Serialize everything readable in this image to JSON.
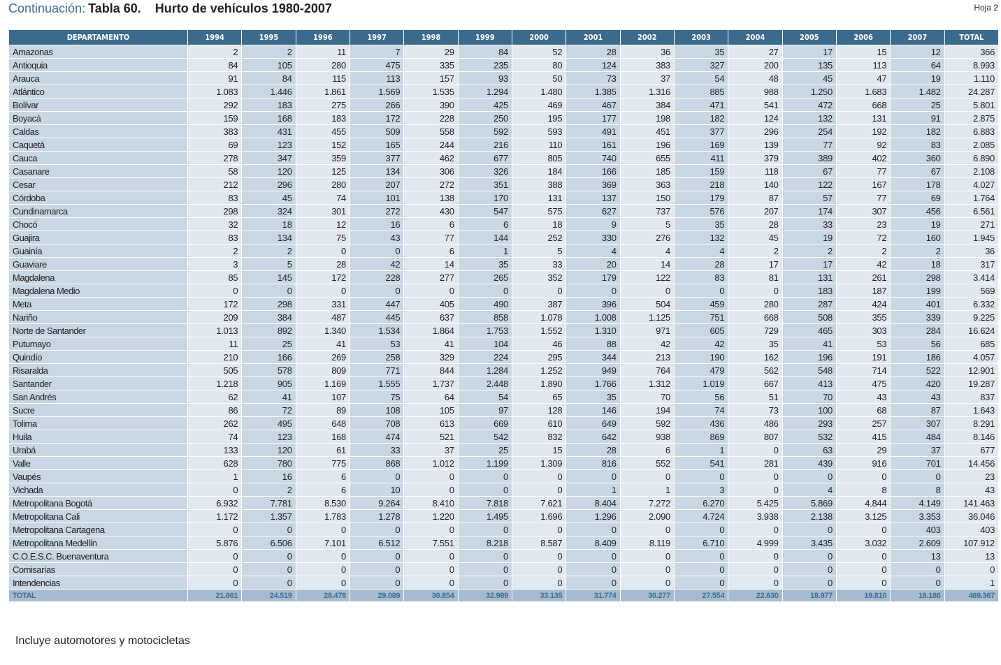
{
  "header": {
    "continuation": "Continuación:",
    "table_number": "Tabla 60.",
    "table_title": "Hurto de vehículos 1980-2007",
    "sheet": "Hoja 2"
  },
  "table": {
    "columns": [
      "DEPARTAMENTO",
      "1994",
      "1995",
      "1996",
      "1997",
      "1998",
      "1999",
      "2000",
      "2001",
      "2002",
      "2003",
      "2004",
      "2005",
      "2006",
      "2007",
      "TOTAL"
    ],
    "rows": [
      [
        "Amazonas",
        "2",
        "2",
        "11",
        "7",
        "29",
        "84",
        "52",
        "28",
        "36",
        "35",
        "27",
        "17",
        "15",
        "12",
        "366"
      ],
      [
        "Antioquia",
        "84",
        "105",
        "280",
        "475",
        "335",
        "235",
        "80",
        "124",
        "383",
        "327",
        "200",
        "135",
        "113",
        "64",
        "8.993"
      ],
      [
        "Arauca",
        "91",
        "84",
        "115",
        "113",
        "157",
        "93",
        "50",
        "73",
        "37",
        "54",
        "48",
        "45",
        "47",
        "19",
        "1.110"
      ],
      [
        "Atlántico",
        "1.083",
        "1.446",
        "1.861",
        "1.569",
        "1.535",
        "1.294",
        "1.480",
        "1.385",
        "1.316",
        "885",
        "988",
        "1.250",
        "1.683",
        "1.482",
        "24.287"
      ],
      [
        "Bolívar",
        "292",
        "183",
        "275",
        "266",
        "390",
        "425",
        "469",
        "467",
        "384",
        "471",
        "541",
        "472",
        "668",
        "25",
        "5.801"
      ],
      [
        "Boyacá",
        "159",
        "168",
        "183",
        "172",
        "228",
        "250",
        "195",
        "177",
        "198",
        "182",
        "124",
        "132",
        "131",
        "91",
        "2.875"
      ],
      [
        "Caldas",
        "383",
        "431",
        "455",
        "509",
        "558",
        "592",
        "593",
        "491",
        "451",
        "377",
        "296",
        "254",
        "192",
        "182",
        "6.883"
      ],
      [
        "Caquetá",
        "69",
        "123",
        "152",
        "165",
        "244",
        "216",
        "110",
        "161",
        "196",
        "169",
        "139",
        "77",
        "92",
        "83",
        "2.085"
      ],
      [
        "Cauca",
        "278",
        "347",
        "359",
        "377",
        "462",
        "677",
        "805",
        "740",
        "655",
        "411",
        "379",
        "389",
        "402",
        "360",
        "6.890"
      ],
      [
        "Casanare",
        "58",
        "120",
        "125",
        "134",
        "306",
        "326",
        "184",
        "166",
        "185",
        "159",
        "118",
        "67",
        "77",
        "67",
        "2.108"
      ],
      [
        "Cesar",
        "212",
        "296",
        "280",
        "207",
        "272",
        "351",
        "388",
        "369",
        "363",
        "218",
        "140",
        "122",
        "167",
        "178",
        "4.027"
      ],
      [
        "Córdoba",
        "83",
        "45",
        "74",
        "101",
        "138",
        "170",
        "131",
        "137",
        "150",
        "179",
        "87",
        "57",
        "77",
        "69",
        "1.764"
      ],
      [
        "Cundinamarca",
        "298",
        "324",
        "301",
        "272",
        "430",
        "547",
        "575",
        "627",
        "737",
        "576",
        "207",
        "174",
        "307",
        "456",
        "6.561"
      ],
      [
        "Chocó",
        "32",
        "18",
        "12",
        "16",
        "6",
        "6",
        "18",
        "9",
        "5",
        "35",
        "28",
        "33",
        "23",
        "19",
        "271"
      ],
      [
        "Guajira",
        "83",
        "134",
        "75",
        "43",
        "77",
        "144",
        "252",
        "330",
        "276",
        "132",
        "45",
        "19",
        "72",
        "160",
        "1.945"
      ],
      [
        "Guainía",
        "2",
        "2",
        "0",
        "0",
        "6",
        "1",
        "5",
        "4",
        "4",
        "4",
        "2",
        "2",
        "2",
        "2",
        "36"
      ],
      [
        "Guaviare",
        "3",
        "5",
        "28",
        "42",
        "14",
        "35",
        "33",
        "20",
        "14",
        "28",
        "17",
        "17",
        "42",
        "18",
        "317"
      ],
      [
        "Magdalena",
        "85",
        "145",
        "172",
        "228",
        "277",
        "265",
        "352",
        "179",
        "122",
        "83",
        "81",
        "131",
        "261",
        "298",
        "3.414"
      ],
      [
        "Magdalena Medio",
        "0",
        "0",
        "0",
        "0",
        "0",
        "0",
        "0",
        "0",
        "0",
        "0",
        "0",
        "183",
        "187",
        "199",
        "569"
      ],
      [
        "Meta",
        "172",
        "298",
        "331",
        "447",
        "405",
        "490",
        "387",
        "396",
        "504",
        "459",
        "280",
        "287",
        "424",
        "401",
        "6.332"
      ],
      [
        "Nariño",
        "209",
        "384",
        "487",
        "445",
        "637",
        "858",
        "1.078",
        "1.008",
        "1.125",
        "751",
        "668",
        "508",
        "355",
        "339",
        "9.225"
      ],
      [
        "Norte de Santander",
        "1.013",
        "892",
        "1.340",
        "1.534",
        "1.864",
        "1.753",
        "1.552",
        "1.310",
        "971",
        "605",
        "729",
        "465",
        "303",
        "284",
        "16.624"
      ],
      [
        "Putumayo",
        "11",
        "25",
        "41",
        "53",
        "41",
        "104",
        "46",
        "88",
        "42",
        "42",
        "35",
        "41",
        "53",
        "56",
        "685"
      ],
      [
        "Quindío",
        "210",
        "166",
        "269",
        "258",
        "329",
        "224",
        "295",
        "344",
        "213",
        "190",
        "162",
        "196",
        "191",
        "186",
        "4.057"
      ],
      [
        "Risaralda",
        "505",
        "578",
        "809",
        "771",
        "844",
        "1.284",
        "1.252",
        "949",
        "764",
        "479",
        "562",
        "548",
        "714",
        "522",
        "12.901"
      ],
      [
        "Santander",
        "1.218",
        "905",
        "1.169",
        "1.555",
        "1.737",
        "2.448",
        "1.890",
        "1.766",
        "1.312",
        "1.019",
        "667",
        "413",
        "475",
        "420",
        "19.287"
      ],
      [
        "San Andrés",
        "62",
        "41",
        "107",
        "75",
        "64",
        "54",
        "65",
        "35",
        "70",
        "56",
        "51",
        "70",
        "43",
        "43",
        "837"
      ],
      [
        "Sucre",
        "86",
        "72",
        "89",
        "108",
        "105",
        "97",
        "128",
        "146",
        "194",
        "74",
        "73",
        "100",
        "68",
        "87",
        "1.643"
      ],
      [
        "Tolima",
        "262",
        "495",
        "648",
        "708",
        "613",
        "669",
        "610",
        "649",
        "592",
        "436",
        "486",
        "293",
        "257",
        "307",
        "8.291"
      ],
      [
        "Huila",
        "74",
        "123",
        "168",
        "474",
        "521",
        "542",
        "832",
        "642",
        "938",
        "869",
        "807",
        "532",
        "415",
        "484",
        "8.146"
      ],
      [
        "Urabá",
        "133",
        "120",
        "61",
        "33",
        "37",
        "25",
        "15",
        "28",
        "6",
        "1",
        "0",
        "63",
        "29",
        "37",
        "677"
      ],
      [
        "Valle",
        "628",
        "780",
        "775",
        "868",
        "1.012",
        "1.199",
        "1.309",
        "816",
        "552",
        "541",
        "281",
        "439",
        "916",
        "701",
        "14.456"
      ],
      [
        "Vaupés",
        "1",
        "16",
        "6",
        "0",
        "0",
        "0",
        "0",
        "0",
        "0",
        "0",
        "0",
        "0",
        "0",
        "0",
        "23"
      ],
      [
        "Vichada",
        "0",
        "2",
        "6",
        "10",
        "0",
        "0",
        "0",
        "1",
        "1",
        "3",
        "0",
        "4",
        "8",
        "8",
        "43"
      ],
      [
        "Metropolitana Bogotá",
        "6.932",
        "7.781",
        "8.530",
        "9.264",
        "8.410",
        "7.818",
        "7.621",
        "8.404",
        "7.272",
        "6.270",
        "5.425",
        "5.869",
        "4.844",
        "4.149",
        "141.463"
      ],
      [
        "Metropolitana Cali",
        "1.172",
        "1.357",
        "1.783",
        "1.278",
        "1.220",
        "1.495",
        "1.696",
        "1.296",
        "2.090",
        "4.724",
        "3.938",
        "2.138",
        "3.125",
        "3.353",
        "36.046"
      ],
      [
        "Metropolitana Cartagena",
        "0",
        "0",
        "0",
        "0",
        "0",
        "0",
        "0",
        "0",
        "0",
        "0",
        "0",
        "0",
        "0",
        "403",
        "403"
      ],
      [
        "Metropolitana Medellín",
        "5.876",
        "6.506",
        "7.101",
        "6.512",
        "7.551",
        "8.218",
        "8.587",
        "8.409",
        "8.119",
        "6.710",
        "4.999",
        "3.435",
        "3.032",
        "2.609",
        "107.912"
      ],
      [
        "C.O.E.S.C. Buenaventura",
        "0",
        "0",
        "0",
        "0",
        "0",
        "0",
        "0",
        "0",
        "0",
        "0",
        "0",
        "0",
        "0",
        "13",
        "13"
      ],
      [
        "Comisarías",
        "0",
        "0",
        "0",
        "0",
        "0",
        "0",
        "0",
        "0",
        "0",
        "0",
        "0",
        "0",
        "0",
        "0",
        "0"
      ],
      [
        "Intendencias",
        "0",
        "0",
        "0",
        "0",
        "0",
        "0",
        "0",
        "0",
        "0",
        "0",
        "0",
        "0",
        "0",
        "0",
        "1"
      ]
    ],
    "total": [
      "TOTAL",
      "21.861",
      "24.519",
      "28.478",
      "29.089",
      "30.854",
      "32.989",
      "33.135",
      "31.774",
      "30.277",
      "27.554",
      "22.630",
      "18.977",
      "19.810",
      "18.186",
      "469.367"
    ]
  },
  "note": "Incluye automotores y motocicletas",
  "colors": {
    "header_bg": "#3b6a8d",
    "light_cell": "#e1e8ef",
    "dark_cell": "#c9d6e3",
    "total_bg": "#a6bbcf",
    "accent": "#3c6e94"
  }
}
